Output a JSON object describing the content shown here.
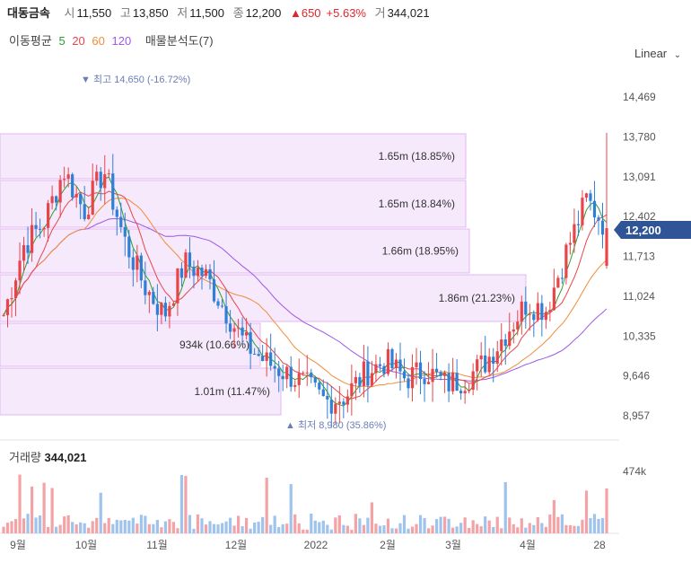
{
  "header": {
    "name": "대동금속",
    "open_label": "시",
    "open": "11,550",
    "high_label": "고",
    "high": "13,850",
    "low_label": "저",
    "low": "11,500",
    "close_label": "종",
    "close": "12,200",
    "change": "▲650",
    "change_pct": "+5.63%",
    "volume_label": "거",
    "volume": "344,021"
  },
  "indicators": {
    "ma_label": "이동평균",
    "ma5": "5",
    "ma20": "20",
    "ma60": "60",
    "ma120": "120",
    "vp_label": "매물분석도(7)",
    "colors": {
      "ma5": "#2ca02c",
      "ma20": "#e8454a",
      "ma60": "#f08c3a",
      "ma120": "#9b59e6"
    }
  },
  "scale_button": "Linear",
  "volume_panel": {
    "label": "거래량",
    "value": "344,021",
    "tick": "474k"
  },
  "annotations": {
    "high": "최고 14,650 (-16.72%)",
    "low": "최저 8,980 (35.86%)"
  },
  "current_price_tag": "12,200",
  "chart_data": {
    "type": "candlestick",
    "title": "대동금속",
    "yaxis": {
      "ticks": [
        "14,469",
        "13,780",
        "13,091",
        "12,402",
        "11,713",
        "11,024",
        "10,335",
        "9,646",
        "8,957"
      ],
      "ylim": [
        8700,
        15200
      ]
    },
    "xaxis": {
      "ticks": [
        "9월",
        "10월",
        "11월",
        "12월",
        "2022",
        "2월",
        "3월",
        "4월",
        "28"
      ]
    },
    "volume_profile": [
      {
        "label": "1.65m (18.85%)"
      },
      {
        "label": "1.65m (18.84%)"
      },
      {
        "label": "1.66m (18.95%)"
      },
      {
        "label": "1.86m (21.23%)"
      },
      {
        "label": "934k (10.66%)"
      },
      {
        "label": "1.01m (11.47%)"
      }
    ],
    "ohlc_anchor_closes": [
      10700,
      11900,
      12300,
      13200,
      12500,
      13200,
      12000,
      11200,
      10700,
      11600,
      11400,
      10800,
      10200,
      9900,
      9700,
      9500,
      9200,
      9300,
      9700,
      9900,
      9600,
      9750,
      9500,
      9600,
      9900,
      10400,
      10900,
      10800,
      11800,
      12700,
      12200
    ],
    "last_candle": {
      "open": 11550,
      "high": 13850,
      "low": 11500,
      "close": 12200,
      "volume": 344021
    }
  }
}
